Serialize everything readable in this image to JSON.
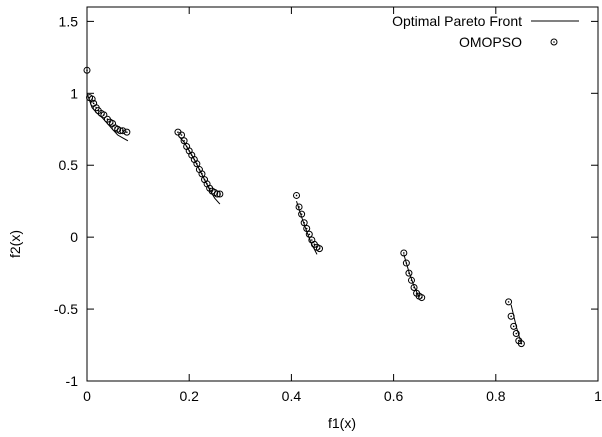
{
  "chart_data": {
    "type": "scatter",
    "title": "",
    "xlabel": "f1(x)",
    "ylabel": "f2(x)",
    "xlim": [
      0,
      1
    ],
    "ylim": [
      -1,
      1.6
    ],
    "xticks": [
      0,
      0.2,
      0.4,
      0.6,
      0.8,
      1
    ],
    "xtick_labels": [
      "0",
      "0.2",
      "0.4",
      "0.6",
      "0.8",
      "1"
    ],
    "yticks": [
      -1,
      -0.5,
      0,
      0.5,
      1,
      1.5
    ],
    "ytick_labels": [
      "-1",
      "-0.5",
      "0",
      "0.5",
      "1",
      "1.5"
    ],
    "grid": false,
    "legend_position": "top-right",
    "series": [
      {
        "name": "Optimal Pareto Front",
        "kind": "line",
        "color": "#000000",
        "segments": [
          [
            [
              0.0,
              1.0
            ],
            [
              0.01,
              0.9
            ],
            [
              0.02,
              0.86
            ],
            [
              0.03,
              0.83
            ],
            [
              0.04,
              0.79
            ],
            [
              0.05,
              0.75
            ],
            [
              0.06,
              0.71
            ],
            [
              0.07,
              0.69
            ],
            [
              0.08,
              0.67
            ]
          ],
          [
            [
              0.18,
              0.7
            ],
            [
              0.19,
              0.66
            ],
            [
              0.2,
              0.6
            ],
            [
              0.21,
              0.54
            ],
            [
              0.22,
              0.47
            ],
            [
              0.23,
              0.4
            ],
            [
              0.24,
              0.33
            ],
            [
              0.25,
              0.27
            ],
            [
              0.26,
              0.23
            ]
          ],
          [
            [
              0.41,
              0.25
            ],
            [
              0.42,
              0.14
            ],
            [
              0.43,
              0.04
            ],
            [
              0.44,
              -0.05
            ],
            [
              0.45,
              -0.12
            ]
          ],
          [
            [
              0.62,
              -0.12
            ],
            [
              0.63,
              -0.24
            ],
            [
              0.64,
              -0.34
            ],
            [
              0.65,
              -0.42
            ]
          ],
          [
            [
              0.83,
              -0.47
            ],
            [
              0.84,
              -0.62
            ],
            [
              0.85,
              -0.74
            ]
          ]
        ]
      },
      {
        "name": "OMOPSO",
        "kind": "points",
        "color": "#000000",
        "points": [
          [
            0.0,
            1.16
          ],
          [
            0.005,
            0.97
          ],
          [
            0.01,
            0.96
          ],
          [
            0.013,
            0.93
          ],
          [
            0.018,
            0.9
          ],
          [
            0.022,
            0.88
          ],
          [
            0.028,
            0.86
          ],
          [
            0.033,
            0.85
          ],
          [
            0.04,
            0.82
          ],
          [
            0.045,
            0.8
          ],
          [
            0.05,
            0.79
          ],
          [
            0.055,
            0.76
          ],
          [
            0.06,
            0.75
          ],
          [
            0.065,
            0.74
          ],
          [
            0.07,
            0.74
          ],
          [
            0.078,
            0.73
          ],
          [
            0.178,
            0.73
          ],
          [
            0.185,
            0.71
          ],
          [
            0.19,
            0.67
          ],
          [
            0.195,
            0.63
          ],
          [
            0.2,
            0.6
          ],
          [
            0.205,
            0.57
          ],
          [
            0.21,
            0.54
          ],
          [
            0.215,
            0.51
          ],
          [
            0.22,
            0.47
          ],
          [
            0.225,
            0.44
          ],
          [
            0.23,
            0.4
          ],
          [
            0.235,
            0.37
          ],
          [
            0.24,
            0.34
          ],
          [
            0.245,
            0.32
          ],
          [
            0.25,
            0.31
          ],
          [
            0.255,
            0.3
          ],
          [
            0.26,
            0.3
          ],
          [
            0.41,
            0.29
          ],
          [
            0.415,
            0.21
          ],
          [
            0.42,
            0.16
          ],
          [
            0.425,
            0.1
          ],
          [
            0.43,
            0.06
          ],
          [
            0.435,
            0.02
          ],
          [
            0.44,
            -0.02
          ],
          [
            0.445,
            -0.05
          ],
          [
            0.45,
            -0.07
          ],
          [
            0.455,
            -0.08
          ],
          [
            0.62,
            -0.11
          ],
          [
            0.625,
            -0.18
          ],
          [
            0.63,
            -0.25
          ],
          [
            0.635,
            -0.3
          ],
          [
            0.64,
            -0.35
          ],
          [
            0.645,
            -0.39
          ],
          [
            0.65,
            -0.41
          ],
          [
            0.655,
            -0.42
          ],
          [
            0.825,
            -0.45
          ],
          [
            0.83,
            -0.55
          ],
          [
            0.835,
            -0.62
          ],
          [
            0.84,
            -0.67
          ],
          [
            0.845,
            -0.72
          ],
          [
            0.85,
            -0.74
          ]
        ]
      }
    ]
  }
}
